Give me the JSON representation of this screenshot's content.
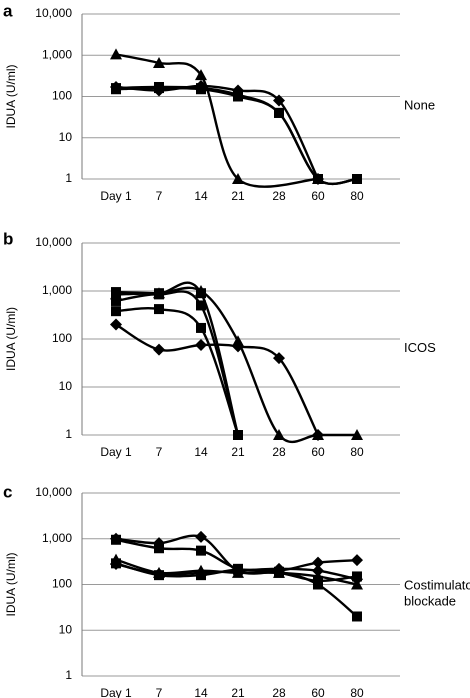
{
  "chart_data": [
    {
      "type": "line",
      "panel_label": "a",
      "ylabel": "IDUA (U/ml)",
      "yscale": "log",
      "ylim": [
        1,
        10000
      ],
      "yticks": [
        "1",
        "10",
        "100",
        "1,000",
        "10,000"
      ],
      "categories": [
        "Day 1",
        "7",
        "14",
        "21",
        "28",
        "60",
        "80"
      ],
      "annotation": "None",
      "grid": "horizontal",
      "series": [
        {
          "marker": "triangle",
          "values": [
            1050,
            650,
            330,
            1,
            null,
            1,
            null
          ]
        },
        {
          "marker": "diamond",
          "values": [
            170,
            140,
            180,
            140,
            80,
            1,
            null
          ]
        },
        {
          "marker": "square",
          "values": [
            160,
            170,
            160,
            110,
            40,
            1,
            1
          ]
        },
        {
          "marker": "square",
          "values": [
            150,
            160,
            150,
            100,
            40,
            1,
            1
          ]
        }
      ]
    },
    {
      "type": "line",
      "panel_label": "b",
      "ylabel": "IDUA (U/ml)",
      "yscale": "log",
      "ylim": [
        1,
        10000
      ],
      "yticks": [
        "1",
        "10",
        "100",
        "1,000",
        "10,000"
      ],
      "categories": [
        "Day 1",
        "7",
        "14",
        "21",
        "28",
        "60",
        "80"
      ],
      "annotation": "ICOS",
      "grid": "horizontal",
      "series": [
        {
          "marker": "triangle",
          "values": [
            850,
            900,
            1000,
            90,
            1,
            1,
            1
          ]
        },
        {
          "marker": "diamond",
          "values": [
            200,
            60,
            75,
            70,
            40,
            1,
            null
          ]
        },
        {
          "marker": "square",
          "values": [
            950,
            900,
            900,
            1,
            null,
            null,
            null
          ]
        },
        {
          "marker": "square",
          "values": [
            380,
            420,
            170,
            1,
            null,
            null,
            null
          ]
        },
        {
          "marker": "square",
          "values": [
            620,
            850,
            500,
            1,
            null,
            null,
            null
          ]
        }
      ]
    },
    {
      "type": "line",
      "panel_label": "c",
      "ylabel": "IDUA (U/ml)",
      "yscale": "log",
      "ylim": [
        1,
        10000
      ],
      "yticks": [
        "1",
        "10",
        "100",
        "1,000",
        "10,000"
      ],
      "categories": [
        "Day 1",
        "7",
        "14",
        "21",
        "28",
        "60",
        "80"
      ],
      "annotation": "Costimulatory blockade",
      "grid": "horizontal",
      "series": [
        {
          "marker": "diamond",
          "values": [
            1000,
            800,
            1100,
            200,
            200,
            300,
            340
          ]
        },
        {
          "marker": "square",
          "values": [
            950,
            620,
            550,
            220,
            190,
            100,
            20
          ]
        },
        {
          "marker": "triangle",
          "values": [
            350,
            180,
            200,
            180,
            180,
            150,
            100
          ]
        },
        {
          "marker": "square",
          "values": [
            290,
            160,
            160,
            210,
            180,
            120,
            150
          ]
        },
        {
          "marker": "diamond",
          "values": [
            280,
            170,
            180,
            200,
            220,
            200,
            130
          ]
        }
      ]
    }
  ]
}
